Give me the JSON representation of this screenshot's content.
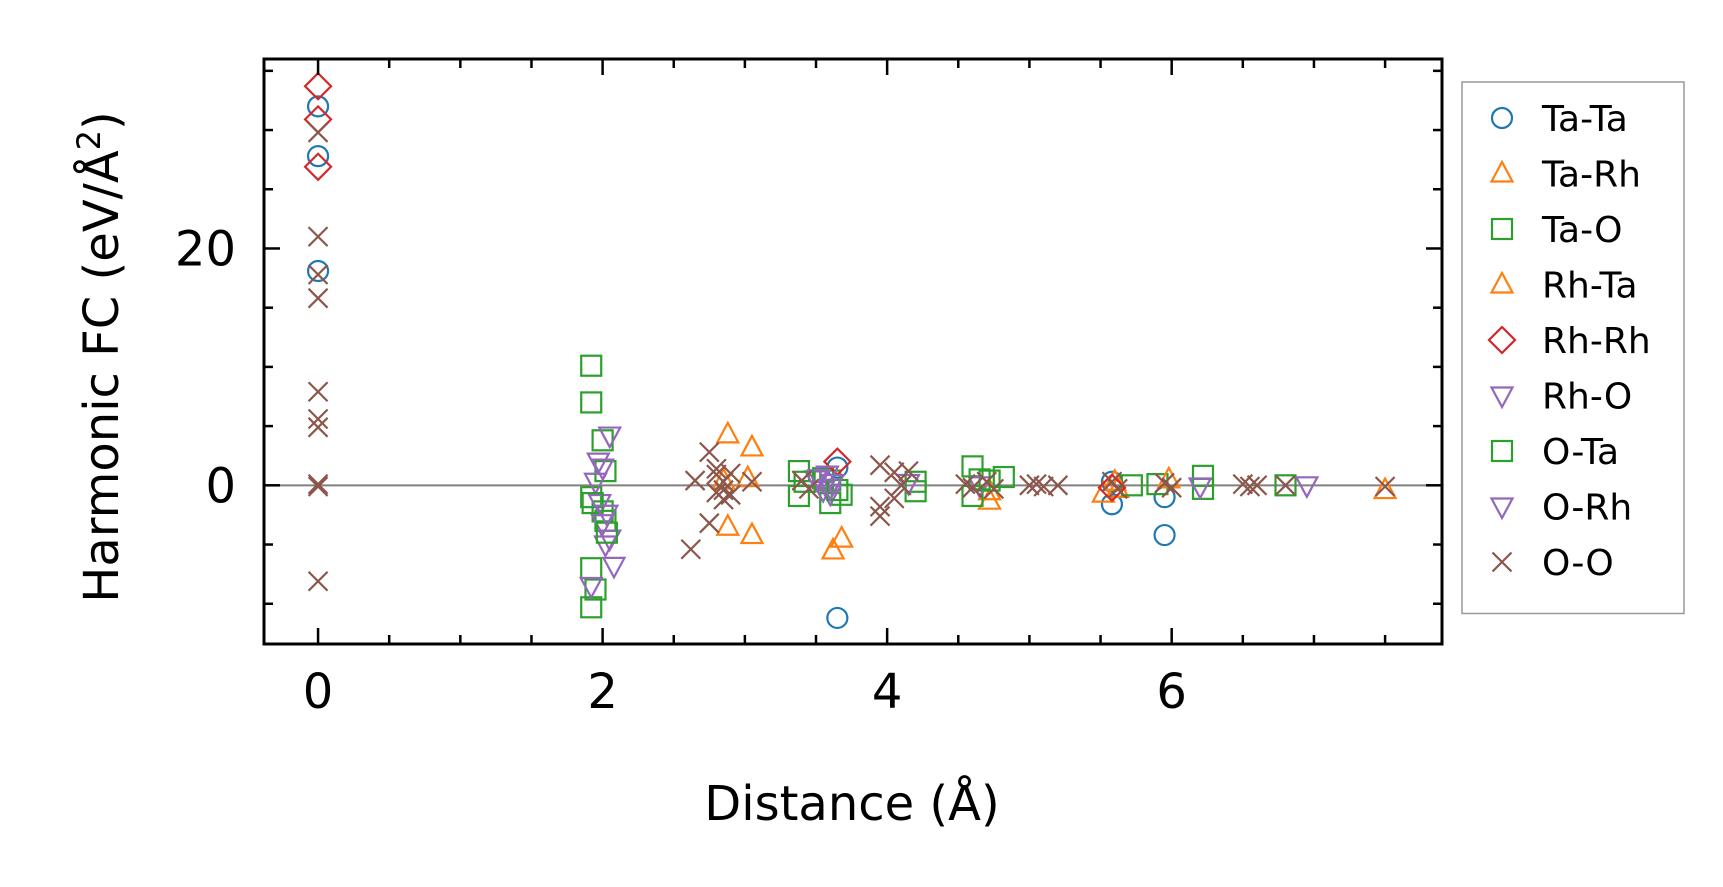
{
  "chart_data": {
    "type": "scatter",
    "title": "",
    "xlabel": "Distance (Å)",
    "ylabel": "Harmonic FC (eV/Å",
    "ylabel_sup": "2",
    "ylabel_end": ")",
    "xlim": [
      -0.38,
      7.9
    ],
    "ylim": [
      -13.4,
      36.0
    ],
    "xticks": [
      0,
      2,
      4,
      6
    ],
    "xtick_labels": [
      "0",
      "2",
      "4",
      "6"
    ],
    "yticks": [
      0,
      20
    ],
    "ytick_labels": [
      "0",
      "20"
    ],
    "x_minor_step": 0.5,
    "y_minor_step": 5,
    "reference_line_y": 0,
    "legend_position": "outside-right",
    "series": [
      {
        "name": "Ta-Ta",
        "marker": "circle",
        "color": "#1f77b4",
        "x": [
          0,
          0,
          0,
          3.65,
          3.65,
          5.58,
          5.58,
          5.95,
          5.95
        ],
        "y": [
          32.0,
          27.8,
          18.1,
          -11.2,
          1.5,
          0.3,
          -1.6,
          -4.2,
          -1.0
        ]
      },
      {
        "name": "Ta-Rh",
        "marker": "triangle-up",
        "color": "#ff7f0e",
        "x": [
          2.88,
          2.88,
          3.05,
          3.05,
          3.62,
          3.68,
          4.72,
          4.72,
          5.52,
          5.62,
          7.5
        ],
        "y": [
          4.3,
          -3.5,
          3.2,
          -4.2,
          -5.5,
          -4.5,
          -0.5,
          -1.3,
          -0.7,
          -0.3,
          -0.4
        ]
      },
      {
        "name": "Ta-O",
        "marker": "square",
        "color": "#2ca02c",
        "x": [
          1.92,
          1.92,
          1.92,
          1.92,
          1.92,
          1.95,
          2.0,
          2.0,
          2.02,
          2.02,
          3.38,
          3.38,
          3.55,
          3.6,
          3.6,
          3.68,
          4.2,
          4.2,
          4.6,
          4.6,
          4.72,
          4.82,
          5.72,
          5.9,
          6.22,
          6.22,
          6.8
        ],
        "y": [
          10.1,
          7.0,
          -1.0,
          -7.0,
          -10.3,
          -8.8,
          3.8,
          -2.2,
          1.2,
          -3.0,
          1.2,
          -0.9,
          0.6,
          -1.5,
          0.4,
          -0.8,
          0.3,
          -0.5,
          1.6,
          -0.9,
          0.4,
          0.7,
          0.0,
          0.1,
          0.8,
          -0.3,
          0.0
        ]
      },
      {
        "name": "Rh-Ta",
        "marker": "triangle-up",
        "color": "#ff7f0e",
        "x": [
          2.85,
          3.02,
          5.6,
          5.98
        ],
        "y": [
          0.4,
          0.6,
          0.3,
          0.5
        ]
      },
      {
        "name": "Rh-Rh",
        "marker": "diamond",
        "color": "#d62728",
        "x": [
          0,
          0,
          0,
          3.65,
          5.58
        ],
        "y": [
          33.7,
          30.9,
          26.9,
          2.0,
          -0.2
        ]
      },
      {
        "name": "Rh-O",
        "marker": "triangle-down",
        "color": "#9467bd",
        "x": [
          1.92,
          1.95,
          1.98,
          2.0,
          2.0,
          2.02,
          2.05,
          2.05,
          2.08,
          3.5,
          3.55,
          3.58,
          3.6,
          3.62,
          4.15,
          4.65,
          6.2,
          6.95
        ],
        "y": [
          -8.5,
          0.3,
          -1.5,
          1.5,
          -3.2,
          -5.0,
          4.2,
          -4.5,
          -6.8,
          0.5,
          -0.4,
          0.9,
          -0.7,
          0.2,
          0.2,
          0.0,
          -0.1,
          0.0
        ]
      },
      {
        "name": "O-Ta",
        "marker": "square",
        "color": "#2ca02c",
        "x": [
          1.93,
          2.03,
          3.42,
          3.65,
          4.65
        ],
        "y": [
          -1.5,
          -4.0,
          0.3,
          -0.4,
          0.5
        ]
      },
      {
        "name": "O-Rh",
        "marker": "triangle-down",
        "color": "#9467bd",
        "x": [
          1.97,
          2.03,
          3.52,
          3.6
        ],
        "y": [
          2.0,
          -2.4,
          0.6,
          -0.2
        ]
      },
      {
        "name": "O-O",
        "marker": "x",
        "color": "#8c564b",
        "x": [
          0,
          0,
          0,
          0,
          0,
          0,
          0,
          0,
          0,
          0,
          2.62,
          2.65,
          2.75,
          2.75,
          2.8,
          2.8,
          2.8,
          2.85,
          2.85,
          2.85,
          2.9,
          2.9,
          3.05,
          3.4,
          3.45,
          3.95,
          3.95,
          3.95,
          4.05,
          4.05,
          4.1,
          4.15,
          4.55,
          4.6,
          4.7,
          4.75,
          5.0,
          5.05,
          5.1,
          5.2,
          5.58,
          5.62,
          5.95,
          6.0,
          6.5,
          6.55,
          6.6,
          6.8,
          7.5
        ],
        "y": [
          29.8,
          21.0,
          17.8,
          15.8,
          7.9,
          5.6,
          4.9,
          0.1,
          -0.1,
          -8.1,
          -5.4,
          0.4,
          2.8,
          -3.2,
          1.4,
          -0.6,
          0.9,
          -1.2,
          0.3,
          -0.4,
          1.0,
          -0.8,
          0.3,
          0.4,
          -0.3,
          1.7,
          -1.8,
          -2.6,
          1.1,
          -1.1,
          0.0,
          1.2,
          0.1,
          -0.2,
          0.3,
          -0.3,
          0.0,
          0.1,
          -0.1,
          0.0,
          0.3,
          -0.3,
          0.2,
          -0.2,
          0.1,
          -0.1,
          0.0,
          0.0,
          -0.1
        ]
      }
    ]
  }
}
